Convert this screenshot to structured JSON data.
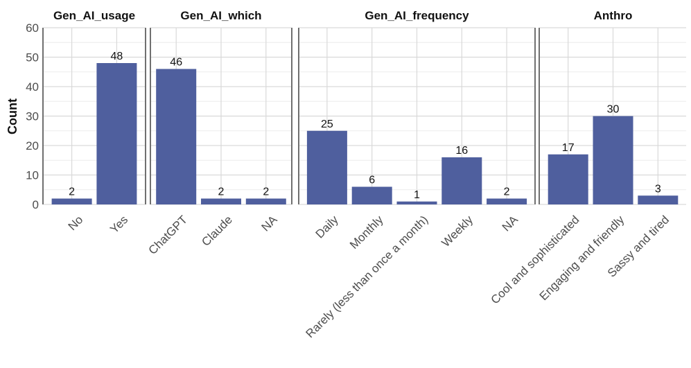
{
  "chart_data": {
    "type": "bar",
    "ylabel": "Count",
    "xlabel": "",
    "ylim": [
      0,
      60
    ],
    "yticks": [
      0,
      10,
      20,
      30,
      40,
      50,
      60
    ],
    "grid": true,
    "bar_color": "#4f5f9e",
    "facets": [
      {
        "title": "Gen_AI_usage",
        "categories": [
          "No",
          "Yes"
        ],
        "values": [
          2,
          48
        ]
      },
      {
        "title": "Gen_AI_which",
        "categories": [
          "ChatGPT",
          "Claude",
          "NA"
        ],
        "values": [
          46,
          2,
          2
        ]
      },
      {
        "title": "Gen_AI_frequency",
        "categories": [
          "Daily",
          "Monthly",
          "Rarely (less than once a month)",
          "Weekly",
          "NA"
        ],
        "values": [
          25,
          6,
          1,
          16,
          2
        ]
      },
      {
        "title": "Anthro",
        "categories": [
          "Cool and sophisticated",
          "Engaging and friendly",
          "Sassy and tired"
        ],
        "values": [
          17,
          30,
          3
        ]
      }
    ]
  }
}
